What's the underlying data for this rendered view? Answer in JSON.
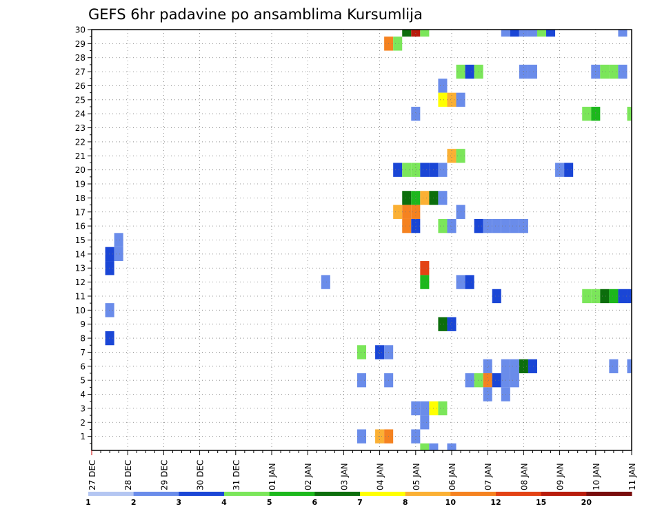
{
  "chart_data": {
    "type": "heatmap",
    "title": "GEFS 6hr padavine po ansamblima Kursumlija",
    "x_tick_labels": [
      "27 DEC",
      "28 DEC",
      "29 DEC",
      "30 DEC",
      "31 DEC",
      "01 JAN",
      "02 JAN",
      "03 JAN",
      "04 JAN",
      "05 JAN",
      "06 JAN",
      "07 JAN",
      "08 JAN",
      "09 JAN",
      "10 JAN",
      "11 JAN"
    ],
    "y_tick_labels": [
      "1",
      "2",
      "3",
      "4",
      "5",
      "6",
      "7",
      "8",
      "9",
      "10",
      "11",
      "12",
      "13",
      "14",
      "15",
      "16",
      "17",
      "18",
      "19",
      "20",
      "21",
      "22",
      "23",
      "24",
      "25",
      "26",
      "27",
      "28",
      "29",
      "30"
    ],
    "x_unit": "6-hour step from 27 DEC 00Z",
    "x_range": [
      0,
      60
    ],
    "y_range": [
      0,
      30
    ],
    "colorbar": {
      "levels": [
        "1",
        "2",
        "3",
        "4",
        "5",
        "6",
        "7",
        "8",
        "10",
        "12",
        "15",
        "20"
      ],
      "colors": [
        "#b4c6f2",
        "#6a8cea",
        "#1a46d6",
        "#7be65a",
        "#1cb81c",
        "#0c6e0c",
        "#ffff00",
        "#fbb034",
        "#f58220",
        "#e34214",
        "#b81c0c",
        "#780c0c"
      ]
    },
    "cells": [
      [
        2,
        14,
        2
      ],
      [
        2,
        13,
        2
      ],
      [
        3,
        15,
        1
      ],
      [
        3,
        14,
        1
      ],
      [
        2,
        10,
        1
      ],
      [
        2,
        8,
        2
      ],
      [
        26,
        12,
        1
      ],
      [
        30,
        7,
        3
      ],
      [
        32,
        7,
        2
      ],
      [
        33,
        7,
        1
      ],
      [
        30,
        5,
        1
      ],
      [
        33,
        5,
        1
      ],
      [
        30,
        1,
        1
      ],
      [
        32,
        1,
        7
      ],
      [
        33,
        1,
        8
      ],
      [
        36,
        1,
        1
      ],
      [
        33,
        29,
        8
      ],
      [
        34,
        29,
        3
      ],
      [
        35,
        30,
        5
      ],
      [
        36,
        30,
        10
      ],
      [
        37,
        30,
        3
      ],
      [
        46,
        30,
        1
      ],
      [
        47,
        30,
        2
      ],
      [
        48,
        30,
        1
      ],
      [
        49,
        30,
        1
      ],
      [
        50,
        30,
        3
      ],
      [
        51,
        30,
        2
      ],
      [
        59,
        30,
        1
      ],
      [
        41,
        27,
        3
      ],
      [
        42,
        27,
        2
      ],
      [
        43,
        27,
        3
      ],
      [
        48,
        27,
        1
      ],
      [
        49,
        27,
        1
      ],
      [
        56,
        27,
        1
      ],
      [
        57,
        27,
        3
      ],
      [
        58,
        27,
        3
      ],
      [
        59,
        27,
        1
      ],
      [
        39,
        26,
        1
      ],
      [
        39,
        25,
        6
      ],
      [
        40,
        25,
        7
      ],
      [
        41,
        25,
        1
      ],
      [
        36,
        24,
        1
      ],
      [
        55,
        24,
        3
      ],
      [
        56,
        24,
        4
      ],
      [
        60,
        24,
        3
      ],
      [
        40,
        21,
        7
      ],
      [
        41,
        21,
        3
      ],
      [
        34,
        20,
        2
      ],
      [
        35,
        20,
        3
      ],
      [
        36,
        20,
        3
      ],
      [
        37,
        20,
        2
      ],
      [
        38,
        20,
        2
      ],
      [
        39,
        20,
        1
      ],
      [
        52,
        20,
        1
      ],
      [
        53,
        20,
        2
      ],
      [
        35,
        18,
        5
      ],
      [
        36,
        18,
        4
      ],
      [
        37,
        18,
        7
      ],
      [
        38,
        18,
        5
      ],
      [
        39,
        18,
        1
      ],
      [
        34,
        17,
        7
      ],
      [
        35,
        17,
        8
      ],
      [
        36,
        17,
        8
      ],
      [
        41,
        17,
        1
      ],
      [
        35,
        16,
        8
      ],
      [
        36,
        16,
        2
      ],
      [
        39,
        16,
        3
      ],
      [
        40,
        16,
        1
      ],
      [
        43,
        16,
        2
      ],
      [
        44,
        16,
        1
      ],
      [
        45,
        16,
        1
      ],
      [
        46,
        16,
        1
      ],
      [
        47,
        16,
        1
      ],
      [
        48,
        16,
        1
      ],
      [
        37,
        13,
        9
      ],
      [
        37,
        12,
        4
      ],
      [
        41,
        12,
        1
      ],
      [
        42,
        12,
        2
      ],
      [
        45,
        11,
        2
      ],
      [
        55,
        11,
        3
      ],
      [
        56,
        11,
        3
      ],
      [
        57,
        11,
        5
      ],
      [
        58,
        11,
        4
      ],
      [
        59,
        11,
        2
      ],
      [
        60,
        11,
        2
      ],
      [
        39,
        9,
        5
      ],
      [
        40,
        9,
        2
      ],
      [
        44,
        6,
        1
      ],
      [
        46,
        6,
        1
      ],
      [
        47,
        6,
        1
      ],
      [
        48,
        6,
        5
      ],
      [
        49,
        6,
        2
      ],
      [
        58,
        6,
        1
      ],
      [
        60,
        6,
        1
      ],
      [
        42,
        5,
        1
      ],
      [
        43,
        5,
        3
      ],
      [
        44,
        5,
        8
      ],
      [
        45,
        5,
        2
      ],
      [
        46,
        5,
        1
      ],
      [
        47,
        5,
        1
      ],
      [
        44,
        4,
        1
      ],
      [
        46,
        4,
        1
      ],
      [
        36,
        3,
        1
      ],
      [
        37,
        3,
        1
      ],
      [
        38,
        3,
        6
      ],
      [
        39,
        3,
        3
      ],
      [
        37,
        2,
        1
      ],
      [
        37,
        0,
        3
      ],
      [
        38,
        0,
        1
      ],
      [
        40,
        0,
        1
      ]
    ]
  }
}
